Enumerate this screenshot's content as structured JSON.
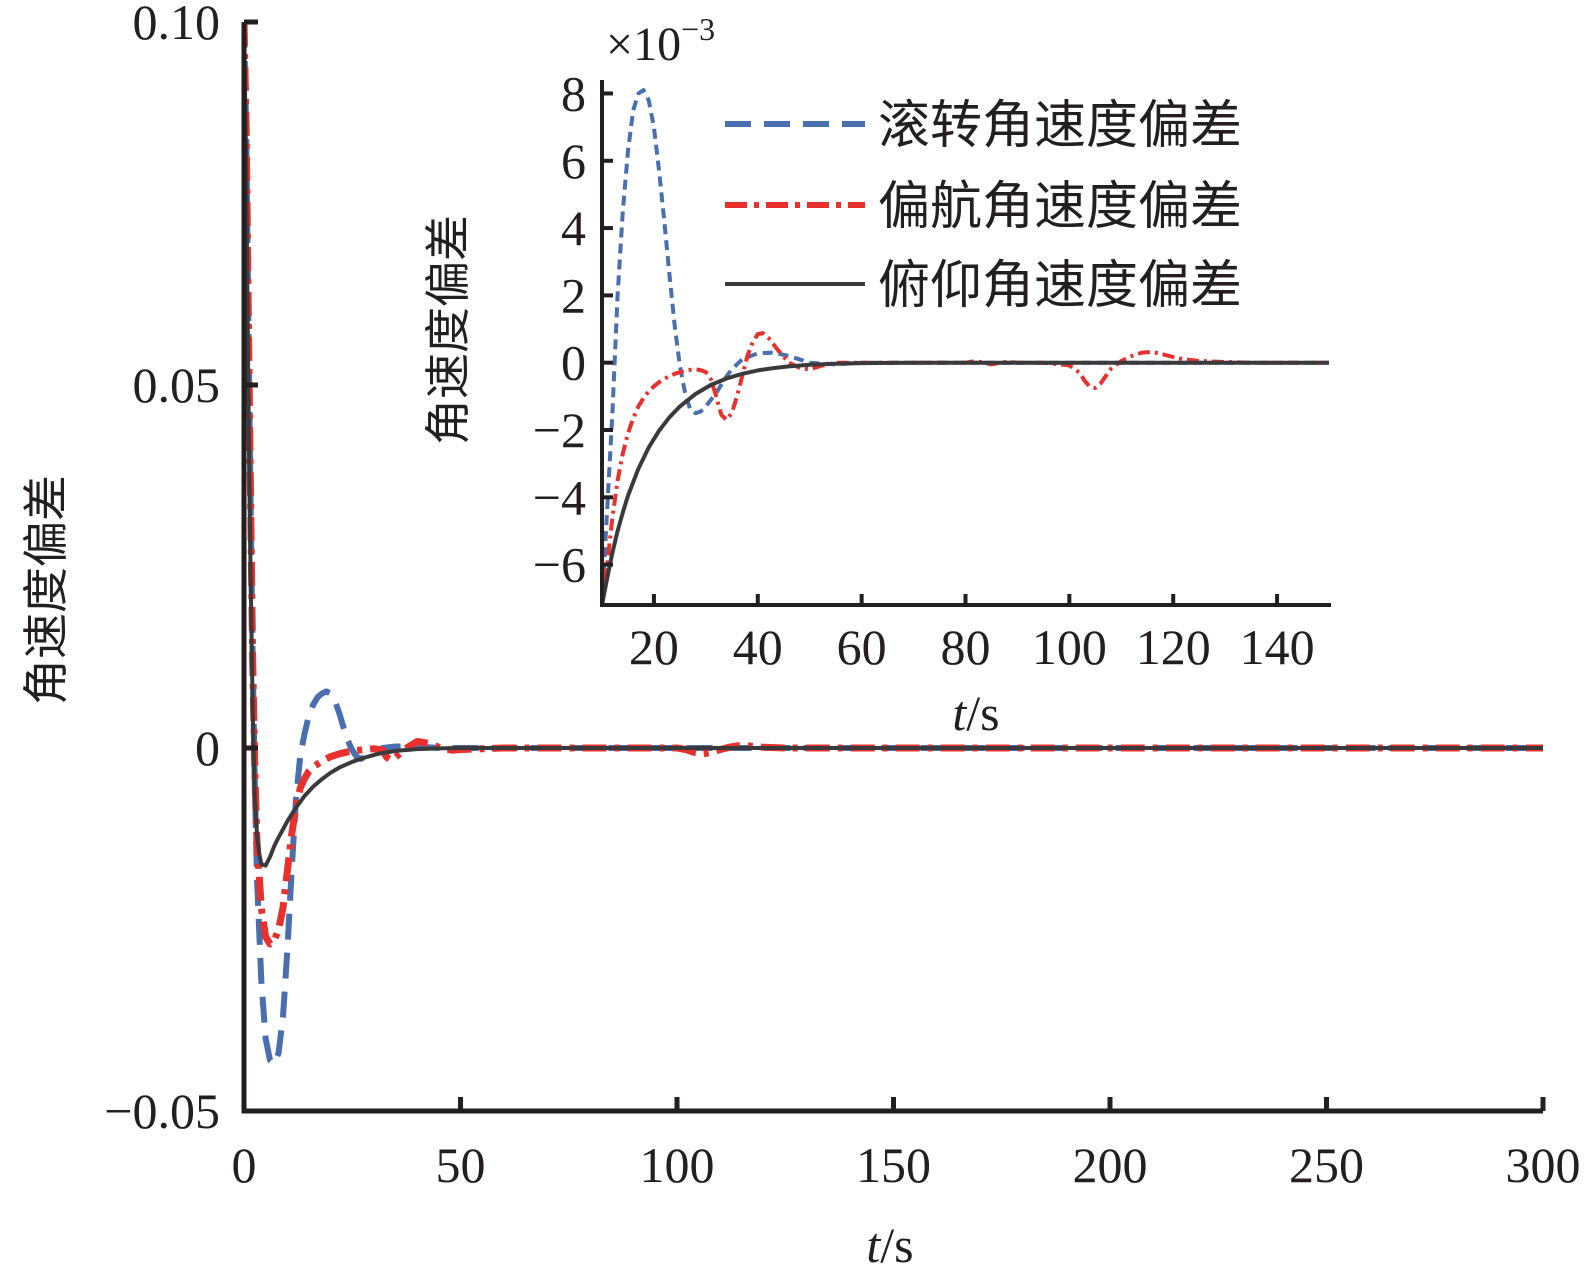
{
  "chart_data": [
    {
      "id": "main",
      "type": "line",
      "xlabel": {
        "var": "t",
        "unit": "/s"
      },
      "ylabel": "角速度偏差",
      "xlim": [
        0,
        300
      ],
      "ylim": [
        -0.05,
        0.1
      ],
      "xticks": [
        0,
        50,
        100,
        150,
        200,
        250,
        300
      ],
      "xtick_labels": [
        "0",
        "50",
        "100",
        "150",
        "200",
        "250",
        "300"
      ],
      "yticks": [
        -0.05,
        0,
        0.05,
        0.1
      ],
      "ytick_labels": [
        "−0.05",
        "0",
        "0.05",
        "0.10"
      ],
      "grid": false,
      "series": [
        {
          "name": "滚转角速度偏差",
          "color": "#4a6fae",
          "dash": "dashed",
          "x": [
            0,
            0.5,
            1,
            1.5,
            2,
            2.5,
            3,
            4,
            5,
            6,
            7,
            8,
            9,
            10,
            11,
            12,
            13,
            14,
            15,
            16,
            17,
            18,
            19,
            20,
            21,
            22,
            23,
            24,
            25,
            26,
            27,
            28,
            30,
            32,
            35,
            40,
            45,
            50,
            100,
            300
          ],
          "y": [
            0.1,
            0.085,
            0.06,
            0.035,
            0.012,
            -0.005,
            -0.018,
            -0.032,
            -0.04,
            -0.043,
            -0.0435,
            -0.042,
            -0.037,
            -0.028,
            -0.017,
            -0.007,
            -0.001,
            0.002,
            0.0045,
            0.006,
            0.007,
            0.0075,
            0.0078,
            0.0075,
            0.0065,
            0.0048,
            0.0028,
            0.001,
            -0.0003,
            -0.0012,
            -0.0015,
            -0.0012,
            -0.0006,
            0.0,
            0.0002,
            0.0002,
            0.0,
            0.0,
            0.0,
            0.0
          ]
        },
        {
          "name": "偏航角速度偏差",
          "color": "#e8302c",
          "dash": "dashdot",
          "x": [
            0,
            0.5,
            1,
            1.5,
            2,
            2.5,
            3,
            4,
            5,
            6,
            7,
            8,
            9,
            10,
            11,
            12,
            13,
            14,
            15,
            16,
            18,
            20,
            22,
            25,
            28,
            30,
            32,
            33,
            34,
            35,
            37,
            40,
            43,
            45,
            48,
            50,
            60,
            80,
            100,
            102,
            104,
            106,
            108,
            110,
            112,
            114,
            116,
            118,
            120,
            125,
            130,
            140,
            160,
            300
          ],
          "y": [
            0.1,
            0.085,
            0.06,
            0.035,
            0.012,
            -0.003,
            -0.013,
            -0.022,
            -0.026,
            -0.027,
            -0.0265,
            -0.025,
            -0.022,
            -0.017,
            -0.012,
            -0.008,
            -0.0055,
            -0.0042,
            -0.0032,
            -0.0026,
            -0.0018,
            -0.0012,
            -0.0008,
            -0.0004,
            -0.0002,
            -0.0001,
            -0.0003,
            -0.0013,
            -0.0017,
            -0.0013,
            -0.0002,
            0.0009,
            0.0006,
            0.0001,
            -0.0003,
            -0.0002,
            0.0,
            0.0,
            0.0,
            -0.0002,
            -0.0006,
            -0.0008,
            -0.0006,
            -0.0002,
            0.0001,
            0.0003,
            0.0003,
            0.0002,
            0.0001,
            0.0,
            0.0,
            0.0,
            0.0,
            0.0
          ]
        },
        {
          "name": "俯仰角速度偏差",
          "color": "#3a3a3c",
          "dash": "solid",
          "x": [
            0,
            0.5,
            1,
            1.5,
            2,
            2.5,
            3,
            3.5,
            4,
            5,
            6,
            7,
            8,
            9,
            10,
            12,
            14,
            16,
            18,
            20,
            22,
            25,
            28,
            31,
            35,
            40,
            45,
            50,
            60,
            300
          ],
          "y": [
            0.1,
            0.08,
            0.05,
            0.025,
            0.005,
            -0.007,
            -0.012,
            -0.0145,
            -0.016,
            -0.0162,
            -0.015,
            -0.0135,
            -0.0123,
            -0.0112,
            -0.0101,
            -0.0082,
            -0.0066,
            -0.0053,
            -0.0043,
            -0.0034,
            -0.0027,
            -0.0019,
            -0.0013,
            -0.0008,
            -0.0004,
            -0.00015,
            -5e-05,
            0.0,
            0.0,
            0.0
          ]
        }
      ]
    },
    {
      "id": "inset",
      "type": "line",
      "xlabel": {
        "var": "t",
        "unit": "/s"
      },
      "ylabel": "角速度偏差",
      "y_multiplier": {
        "base": "×10",
        "exponent": "−3"
      },
      "xlim": [
        10,
        150
      ],
      "ylim": [
        -7.2,
        8.4
      ],
      "xticks": [
        20,
        40,
        60,
        80,
        100,
        120,
        140
      ],
      "xtick_labels": [
        "20",
        "40",
        "60",
        "80",
        "100",
        "120",
        "140"
      ],
      "yticks": [
        -6,
        -4,
        -2,
        0,
        2,
        4,
        6,
        8
      ],
      "ytick_labels": [
        "−6",
        "−4",
        "−2",
        "0",
        "2",
        "4",
        "6",
        "8"
      ],
      "grid": false,
      "legend": {
        "position": "top-right"
      },
      "series": [
        {
          "name": "滚转角速度偏差",
          "color": "#4a6fae",
          "dash": "dashed",
          "x": [
            10,
            12,
            13,
            14,
            15,
            16,
            17,
            18,
            19,
            20,
            21,
            22,
            23,
            24,
            25,
            26,
            27,
            28,
            29,
            30,
            31,
            32,
            33,
            34,
            35,
            37,
            40,
            43,
            46,
            48,
            50,
            55,
            60,
            150
          ],
          "y": [
            -7.2,
            -1.5,
            2.0,
            4.5,
            6.3,
            7.5,
            8.0,
            8.1,
            7.8,
            7.0,
            5.7,
            4.2,
            2.6,
            1.1,
            -0.1,
            -0.9,
            -1.4,
            -1.5,
            -1.45,
            -1.3,
            -1.1,
            -0.9,
            -0.65,
            -0.4,
            -0.2,
            0.1,
            0.28,
            0.3,
            0.2,
            0.1,
            0.0,
            -0.05,
            0.0,
            0.0
          ]
        },
        {
          "name": "偏航角速度偏差",
          "color": "#e8302c",
          "dash": "dashdot",
          "x": [
            10,
            11,
            12,
            13,
            14,
            15,
            16,
            17,
            18,
            19,
            20,
            21,
            22,
            23,
            24,
            25,
            26,
            27,
            28,
            29,
            30,
            31,
            32,
            33,
            34,
            35,
            36,
            37,
            38,
            39,
            40,
            41,
            42,
            44,
            46,
            48,
            50,
            52,
            55,
            60,
            80,
            82,
            85,
            88,
            90,
            95,
            100,
            102,
            103,
            104,
            105,
            106,
            107,
            108,
            110,
            112,
            114,
            116,
            118,
            120,
            122,
            125,
            130,
            135,
            150
          ],
          "y": [
            -7.2,
            -6.0,
            -4.6,
            -3.5,
            -2.7,
            -2.1,
            -1.65,
            -1.3,
            -1.05,
            -0.85,
            -0.7,
            -0.58,
            -0.48,
            -0.4,
            -0.33,
            -0.28,
            -0.24,
            -0.21,
            -0.2,
            -0.22,
            -0.28,
            -0.5,
            -1.0,
            -1.55,
            -1.7,
            -1.5,
            -1.0,
            -0.4,
            0.2,
            0.6,
            0.85,
            0.88,
            0.75,
            0.35,
            0.0,
            -0.15,
            -0.2,
            -0.1,
            0.0,
            0.0,
            0.0,
            0.05,
            -0.05,
            0.03,
            0.0,
            0.0,
            -0.08,
            -0.3,
            -0.55,
            -0.72,
            -0.75,
            -0.62,
            -0.4,
            -0.18,
            0.05,
            0.2,
            0.3,
            0.32,
            0.25,
            0.17,
            0.1,
            0.05,
            0.02,
            0.0,
            0.0
          ]
        },
        {
          "name": "俯仰角速度偏差",
          "color": "#3a3a3c",
          "dash": "solid",
          "x": [
            10,
            11,
            12,
            13,
            14,
            15,
            17,
            19,
            21,
            23,
            25,
            28,
            31,
            34,
            37,
            40,
            43,
            46,
            50,
            55,
            60,
            70,
            150
          ],
          "y": [
            -7.2,
            -6.4,
            -5.65,
            -5.0,
            -4.45,
            -3.95,
            -3.15,
            -2.52,
            -2.02,
            -1.62,
            -1.3,
            -0.93,
            -0.66,
            -0.47,
            -0.33,
            -0.23,
            -0.16,
            -0.11,
            -0.06,
            -0.03,
            -0.012,
            0.0,
            0.0
          ]
        }
      ]
    }
  ]
}
